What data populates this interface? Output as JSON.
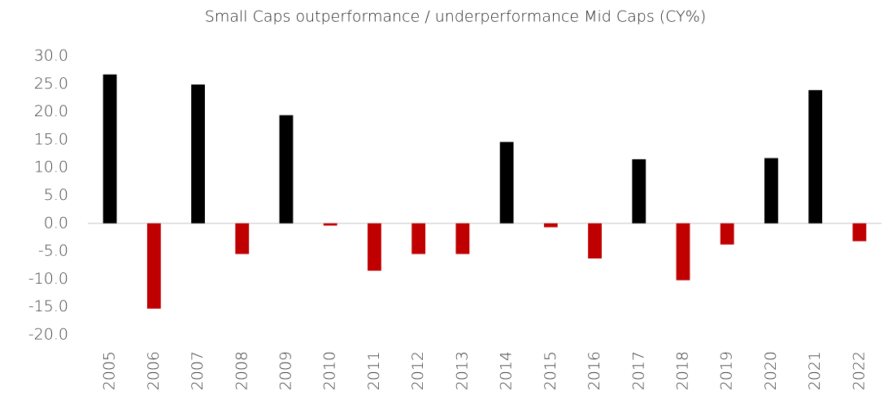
{
  "chart_data": {
    "type": "bar",
    "title": "Small Caps outperformance / underperformance Mid Caps (CY%)",
    "categories": [
      "2005",
      "2006",
      "2007",
      "2008",
      "2009",
      "2010",
      "2011",
      "2012",
      "2013",
      "2014",
      "2015",
      "2016",
      "2017",
      "2018",
      "2019",
      "2020",
      "2021",
      "2022"
    ],
    "values": [
      26.7,
      -15.3,
      24.9,
      -5.5,
      19.4,
      -0.4,
      -8.5,
      -5.5,
      -5.5,
      14.6,
      -0.7,
      -6.3,
      11.5,
      -10.2,
      -3.8,
      11.7,
      23.9,
      -3.2
    ],
    "positive_color": "#000000",
    "negative_color": "#c00000",
    "ylim": [
      -20,
      30
    ],
    "yticks": [
      {
        "value": 30,
        "label": "30.0"
      },
      {
        "value": 25,
        "label": "25.0"
      },
      {
        "value": 20,
        "label": "20.0"
      },
      {
        "value": 15,
        "label": "15.0"
      },
      {
        "value": 10,
        "label": "10.0"
      },
      {
        "value": 5,
        "label": "5.0"
      },
      {
        "value": 0,
        "label": "0.0"
      },
      {
        "value": -5,
        "label": "-5.0"
      },
      {
        "value": -10,
        "label": "-10.0"
      },
      {
        "value": -15,
        "label": "-15.0"
      },
      {
        "value": -20,
        "label": "-20.0"
      }
    ],
    "grid": false
  }
}
